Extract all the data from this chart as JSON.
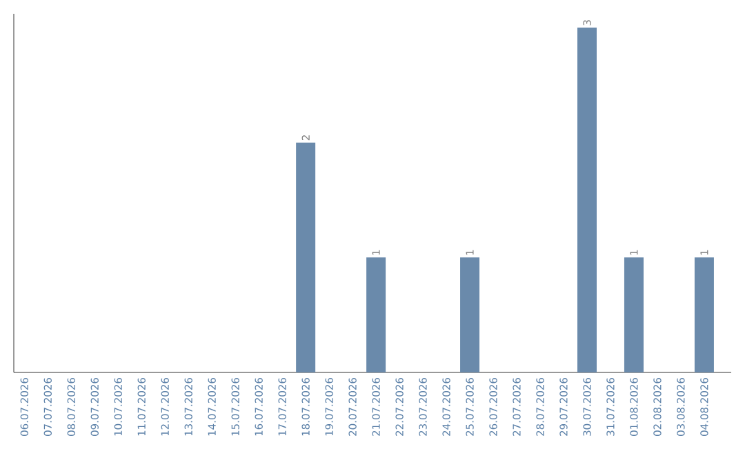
{
  "chart_data": {
    "type": "bar",
    "categories": [
      "06.07.2026",
      "07.07.2026",
      "08.07.2026",
      "09.07.2026",
      "10.07.2026",
      "11.07.2026",
      "12.07.2026",
      "13.07.2026",
      "14.07.2026",
      "15.07.2026",
      "16.07.2026",
      "17.07.2026",
      "18.07.2026",
      "19.07.2026",
      "20.07.2026",
      "21.07.2026",
      "22.07.2026",
      "23.07.2026",
      "24.07.2026",
      "25.07.2026",
      "26.07.2026",
      "27.07.2026",
      "28.07.2026",
      "29.07.2026",
      "30.07.2026",
      "31.07.2026",
      "01.08.2026",
      "02.08.2026",
      "03.08.2026",
      "04.08.2026"
    ],
    "values": [
      null,
      null,
      null,
      null,
      null,
      null,
      null,
      null,
      null,
      null,
      null,
      null,
      2,
      null,
      null,
      1,
      null,
      null,
      null,
      1,
      null,
      null,
      null,
      null,
      3,
      null,
      1,
      null,
      null,
      1
    ],
    "data_labels": true,
    "color": "#6a8aab",
    "ylim": [
      0,
      3.12
    ],
    "tick_labels": "x"
  }
}
